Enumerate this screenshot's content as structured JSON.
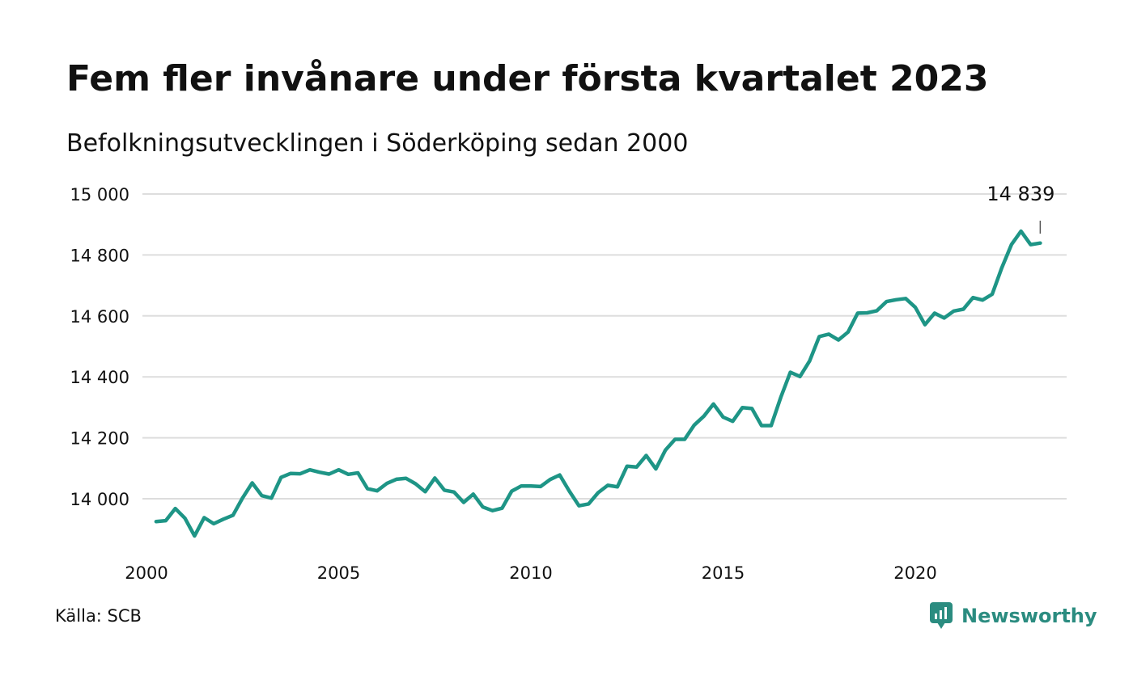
{
  "title": "Fem fler invånare under första kvartalet 2023",
  "subtitle": "Befolkningsutvecklingen i Söderköping sedan 2000",
  "source": "Källa: SCB",
  "brand": {
    "name": "Newsworthy",
    "icon": "newsworthy-logo-icon",
    "color": "#2b8c80"
  },
  "colors": {
    "line": "#1e9586",
    "grid": "#dddddd",
    "text": "#111111"
  },
  "chart_data": {
    "type": "line",
    "title": "Fem fler invånare under första kvartalet 2023",
    "subtitle": "Befolkningsutvecklingen i Söderköping sedan 2000",
    "xlabel": "",
    "ylabel": "",
    "xlim": [
      2000,
      2024.3
    ],
    "ylim": [
      13880,
      15000
    ],
    "x_ticks": [
      2000,
      2005,
      2010,
      2015,
      2020
    ],
    "x_tick_labels": [
      "2000",
      "2005",
      "2010",
      "2015",
      "2020"
    ],
    "y_ticks": [
      14000,
      14200,
      14400,
      14600,
      14800,
      15000
    ],
    "y_tick_labels": [
      "14 000",
      "14 200",
      "14 400",
      "14 600",
      "14 800",
      "15 000"
    ],
    "grid": true,
    "legend": "none",
    "x": [
      2000.25,
      2000.5,
      2000.75,
      2001.0,
      2001.25,
      2001.5,
      2001.75,
      2002.0,
      2002.25,
      2002.5,
      2002.75,
      2003.0,
      2003.25,
      2003.5,
      2003.75,
      2004.0,
      2004.25,
      2004.5,
      2004.75,
      2005.0,
      2005.25,
      2005.5,
      2005.75,
      2006.0,
      2006.25,
      2006.5,
      2006.75,
      2007.0,
      2007.25,
      2007.5,
      2007.75,
      2008.0,
      2008.25,
      2008.5,
      2008.75,
      2009.0,
      2009.25,
      2009.5,
      2009.75,
      2010.0,
      2010.25,
      2010.5,
      2010.75,
      2011.0,
      2011.25,
      2011.5,
      2011.75,
      2012.0,
      2012.25,
      2012.5,
      2012.75,
      2013.0,
      2013.25,
      2013.5,
      2013.75,
      2014.0,
      2014.25,
      2014.5,
      2014.75,
      2015.0,
      2015.25,
      2015.5,
      2015.75,
      2016.0,
      2016.25,
      2016.5,
      2016.75,
      2017.0,
      2017.25,
      2017.5,
      2017.75,
      2018.0,
      2018.25,
      2018.5,
      2018.75,
      2019.0,
      2019.25,
      2019.5,
      2019.75,
      2020.0,
      2020.25,
      2020.5,
      2020.75,
      2021.0,
      2021.25,
      2021.5,
      2021.75,
      2022.0,
      2022.25,
      2022.5,
      2022.75,
      2023.0,
      2023.25
    ],
    "series": [
      {
        "values": [
          13925,
          13928,
          13968,
          13936,
          13878,
          13938,
          13918,
          13933,
          13946,
          14003,
          14052,
          14010,
          14002,
          14070,
          14083,
          14082,
          14095,
          14087,
          14081,
          14095,
          14080,
          14085,
          14033,
          14026,
          14050,
          14064,
          14067,
          14049,
          14023,
          14068,
          14028,
          14022,
          13988,
          14015,
          13973,
          13961,
          13969,
          14025,
          14042,
          14042,
          14040,
          14063,
          14078,
          14025,
          13977,
          13983,
          14020,
          14044,
          14039,
          14107,
          14104,
          14142,
          14098,
          14160,
          14195,
          14195,
          14242,
          14271,
          14311,
          14268,
          14254,
          14299,
          14296,
          14240,
          14240,
          14333,
          14415,
          14401,
          14452,
          14532,
          14540,
          14521,
          14547,
          14609,
          14610,
          14617,
          14647,
          14653,
          14657,
          14628,
          14571,
          14609,
          14593,
          14616,
          14622,
          14660,
          14652,
          14671,
          14758,
          14834,
          14878,
          14834,
          14839
        ]
      }
    ],
    "annotations": [
      {
        "x": 2023.25,
        "y": 14839,
        "text": "14 839"
      }
    ]
  }
}
